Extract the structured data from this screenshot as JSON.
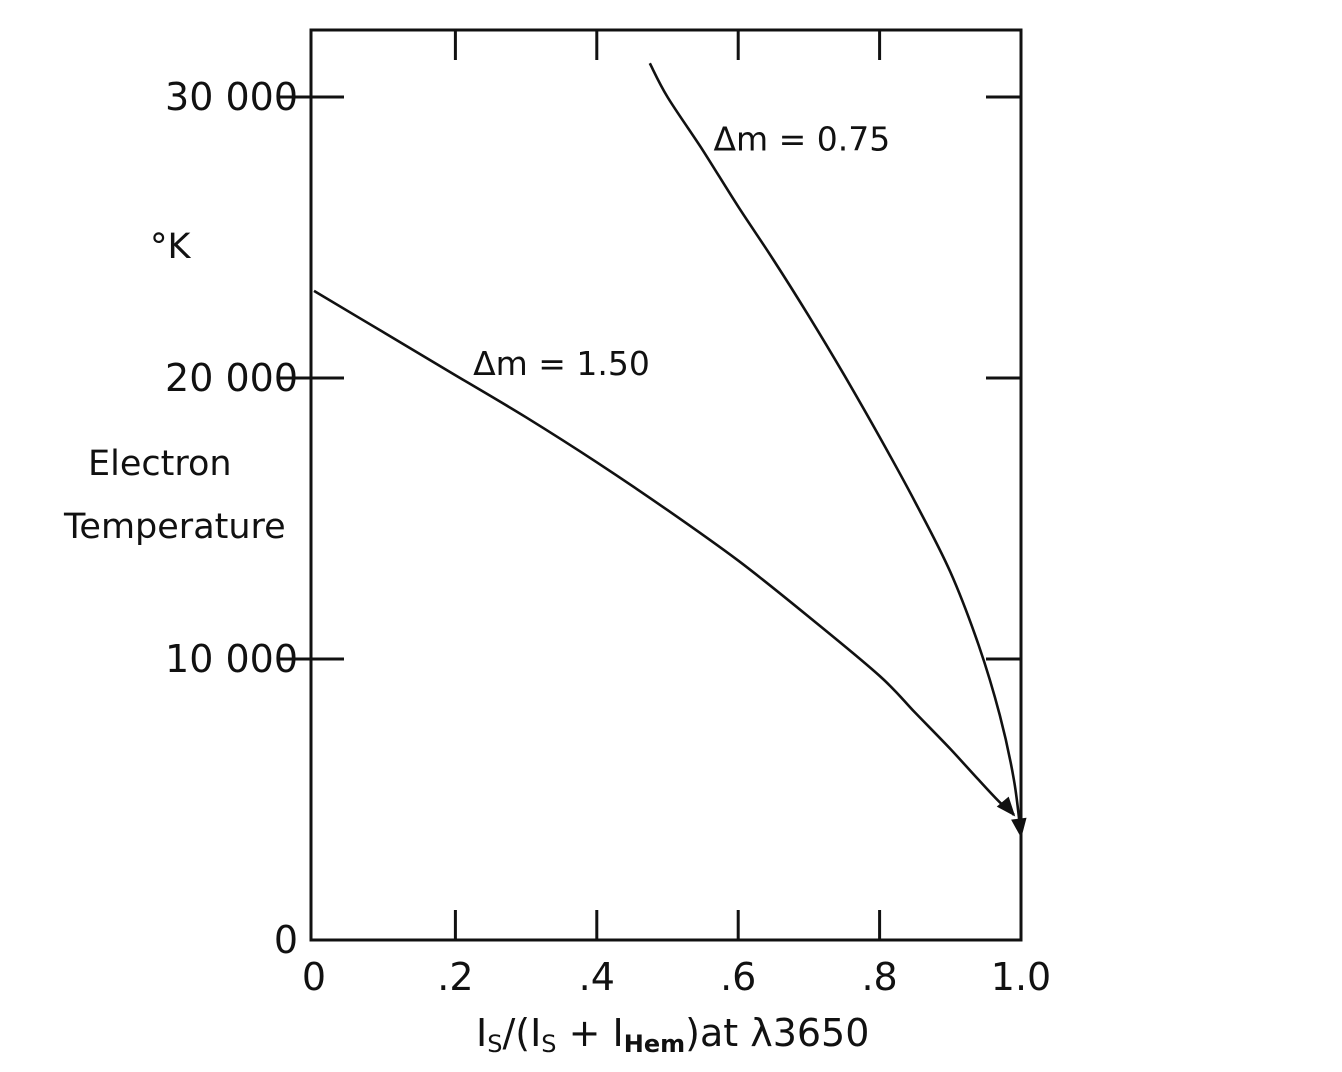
{
  "chart_data": {
    "type": "line",
    "title": "",
    "xlabel_parts": {
      "i1": "I",
      "s1": "S",
      "mid": "/(I",
      "s2": "S",
      "plus": " + I",
      "hem": "Hem",
      "tail": ")at  λ3650"
    },
    "ylabel_lines": [
      "°K",
      "Electron",
      "Temperature"
    ],
    "xlim": [
      0,
      1.0
    ],
    "ylim": [
      0,
      32500
    ],
    "x_ticks": [
      0,
      0.2,
      0.4,
      0.6,
      0.8,
      1.0
    ],
    "x_tick_labels": [
      "0",
      ".2",
      ".4",
      ".6",
      ".8",
      "1.0"
    ],
    "y_ticks": [
      0,
      10000,
      20000,
      30000
    ],
    "y_tick_labels": [
      "0",
      "10 000",
      "20 000",
      "30 000"
    ],
    "grid": false,
    "series": [
      {
        "name": "Δm = 1.50",
        "label_x": 0.225,
        "label_y": 20100,
        "x": [
          0,
          0.1,
          0.2,
          0.3,
          0.4,
          0.5,
          0.6,
          0.7,
          0.8,
          0.85,
          0.9,
          0.94,
          0.97,
          0.985,
          0.99
        ],
        "values": [
          23100,
          21600,
          20100,
          18600,
          17000,
          15300,
          13500,
          11500,
          9400,
          8100,
          6800,
          5700,
          4900,
          4600,
          4450
        ]
      },
      {
        "name": "Δm = 0.75",
        "label_x": 0.565,
        "label_y": 28100,
        "x": [
          0.475,
          0.5,
          0.55,
          0.6,
          0.65,
          0.7,
          0.75,
          0.8,
          0.85,
          0.9,
          0.94,
          0.97,
          0.99,
          1.0
        ],
        "values": [
          31200,
          30000,
          28100,
          26100,
          24200,
          22200,
          20100,
          17900,
          15600,
          13100,
          10500,
          8000,
          5700,
          3700
        ]
      }
    ]
  }
}
